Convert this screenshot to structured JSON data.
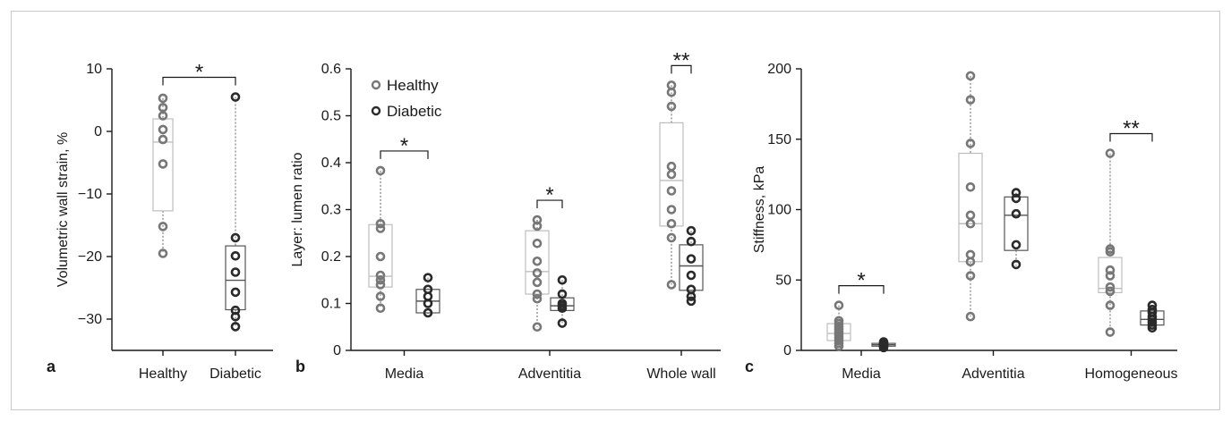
{
  "colors": {
    "healthy": "#777777",
    "diabetic": "#2a2a2a",
    "box_healthy": "#bdbdbd",
    "box_diabetic": "#555555"
  },
  "chart_data": [
    {
      "type": "box",
      "panel_label": "a",
      "ylabel": "Volumetric wall strain, %",
      "ylim": [
        -35,
        10
      ],
      "yticks": [
        10,
        0,
        -10,
        -20,
        -30
      ],
      "yticks_labels": [
        "10",
        "0",
        "−10",
        "−20",
        "−30"
      ],
      "categories": [
        "Healthy",
        "Diabetic"
      ],
      "groups": [
        {
          "category": "Healthy",
          "series": "Healthy",
          "box": {
            "q1": -12.7,
            "median": -1.7,
            "q3": 2.0,
            "whisker_low": -19.5,
            "whisker_high": 5.3
          },
          "points": [
            5.3,
            3.8,
            2.5,
            0.3,
            -1.3,
            -5.2,
            -15.2,
            -19.5
          ]
        },
        {
          "category": "Diabetic",
          "series": "Diabetic",
          "box": {
            "q1": -28.5,
            "median": -23.8,
            "q3": -18.3,
            "whisker_low": -31.2,
            "whisker_high": 5.5
          },
          "points": [
            5.5,
            -17.0,
            -19.9,
            -22.5,
            -25.7,
            -28.6,
            -29.6,
            -31.2
          ]
        }
      ],
      "annotations": [
        {
          "text": "*",
          "between": [
            "Healthy",
            "Diabetic"
          ]
        }
      ]
    },
    {
      "type": "box",
      "panel_label": "b",
      "ylabel": "Layer: lumen ratio",
      "ylim": [
        0,
        0.6
      ],
      "yticks": [
        0,
        0.1,
        0.2,
        0.3,
        0.4,
        0.5,
        0.6
      ],
      "yticks_labels": [
        "0",
        "0.1",
        "0.2",
        "0.3",
        "0.4",
        "0.5",
        "0.6"
      ],
      "categories": [
        "Media",
        "Adventitia",
        "Whole wall"
      ],
      "legend": {
        "position": "top-left",
        "entries": [
          "Healthy",
          "Diabetic"
        ]
      },
      "groups": [
        {
          "category": "Media",
          "series": "Healthy",
          "box": {
            "q1": 0.135,
            "median": 0.158,
            "q3": 0.268,
            "whisker_low": 0.09,
            "whisker_high": 0.383
          },
          "points": [
            0.383,
            0.27,
            0.26,
            0.2,
            0.16,
            0.15,
            0.14,
            0.115,
            0.09
          ]
        },
        {
          "category": "Media",
          "series": "Diabetic",
          "box": {
            "q1": 0.08,
            "median": 0.105,
            "q3": 0.13,
            "whisker_low": 0.078,
            "whisker_high": 0.155
          },
          "points": [
            0.155,
            0.13,
            0.115,
            0.1,
            0.08
          ]
        },
        {
          "category": "Adventitia",
          "series": "Healthy",
          "box": {
            "q1": 0.12,
            "median": 0.168,
            "q3": 0.255,
            "whisker_low": 0.05,
            "whisker_high": 0.278
          },
          "points": [
            0.278,
            0.265,
            0.228,
            0.19,
            0.165,
            0.145,
            0.12,
            0.11,
            0.05
          ]
        },
        {
          "category": "Adventitia",
          "series": "Diabetic",
          "box": {
            "q1": 0.085,
            "median": 0.095,
            "q3": 0.112,
            "whisker_low": 0.058,
            "whisker_high": 0.15
          },
          "points": [
            0.15,
            0.12,
            0.1,
            0.095,
            0.09,
            0.058
          ]
        },
        {
          "category": "Whole wall",
          "series": "Healthy",
          "box": {
            "q1": 0.265,
            "median": 0.362,
            "q3": 0.485,
            "whisker_low": 0.14,
            "whisker_high": 0.565
          },
          "points": [
            0.565,
            0.55,
            0.52,
            0.392,
            0.375,
            0.34,
            0.3,
            0.27,
            0.24,
            0.14
          ]
        },
        {
          "category": "Whole wall",
          "series": "Diabetic",
          "box": {
            "q1": 0.128,
            "median": 0.18,
            "q3": 0.225,
            "whisker_low": 0.105,
            "whisker_high": 0.255
          },
          "points": [
            0.255,
            0.232,
            0.195,
            0.16,
            0.13,
            0.115,
            0.105
          ]
        }
      ],
      "annotations": [
        {
          "text": "*",
          "category": "Media"
        },
        {
          "text": "*",
          "category": "Adventitia"
        },
        {
          "text": "**",
          "category": "Whole wall"
        }
      ]
    },
    {
      "type": "box",
      "panel_label": "c",
      "ylabel": "Stiffness, kPa",
      "ylim": [
        0,
        200
      ],
      "yticks": [
        0,
        50,
        100,
        150,
        200
      ],
      "yticks_labels": [
        "0",
        "50",
        "100",
        "150",
        "200"
      ],
      "categories": [
        "Media",
        "Adventitia",
        "Homogeneous"
      ],
      "groups": [
        {
          "category": "Media",
          "series": "Healthy",
          "box": {
            "q1": 7,
            "median": 12,
            "q3": 19,
            "whisker_low": 3,
            "whisker_high": 32
          },
          "points": [
            32,
            21,
            19,
            17,
            15,
            13,
            11,
            9,
            7,
            5,
            3
          ]
        },
        {
          "category": "Media",
          "series": "Diabetic",
          "box": {
            "q1": 3,
            "median": 4,
            "q3": 5,
            "whisker_low": 2,
            "whisker_high": 6
          },
          "points": [
            6,
            5,
            4.5,
            4,
            3.5,
            3,
            2
          ]
        },
        {
          "category": "Adventitia",
          "series": "Healthy",
          "box": {
            "q1": 63,
            "median": 90,
            "q3": 140,
            "whisker_low": 24,
            "whisker_high": 195
          },
          "points": [
            195,
            178,
            147,
            116,
            96,
            90,
            68,
            63,
            53,
            24
          ]
        },
        {
          "category": "Adventitia",
          "series": "Diabetic",
          "box": {
            "q1": 71,
            "median": 96,
            "q3": 109,
            "whisker_low": 60,
            "whisker_high": 112
          },
          "points": [
            112,
            108,
            97,
            75,
            61
          ]
        },
        {
          "category": "Homogeneous",
          "series": "Healthy",
          "box": {
            "q1": 41,
            "median": 44,
            "q3": 66,
            "whisker_low": 13,
            "whisker_high": 140
          },
          "points": [
            140,
            72,
            70,
            57,
            53,
            45,
            42,
            32,
            13
          ]
        },
        {
          "category": "Homogeneous",
          "series": "Diabetic",
          "box": {
            "q1": 18,
            "median": 22,
            "q3": 28,
            "whisker_low": 16,
            "whisker_high": 32
          },
          "points": [
            32,
            29,
            27,
            24,
            22,
            20,
            18,
            16
          ]
        }
      ],
      "annotations": [
        {
          "text": "*",
          "category": "Media"
        },
        {
          "text": "**",
          "category": "Homogeneous"
        }
      ]
    }
  ]
}
